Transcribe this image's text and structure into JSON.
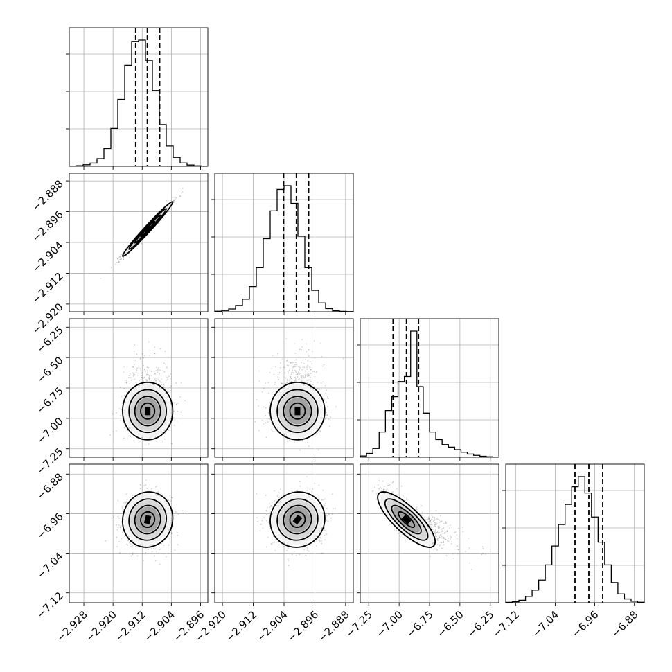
{
  "chart_data": {
    "type": "scatter",
    "subtype": "corner-plot",
    "title": "",
    "grid": true,
    "parameters": [
      {
        "index": 0,
        "label": "",
        "mean": -2.9105,
        "std": 0.0032,
        "skew": 0,
        "axis_range": [
          -2.932,
          -2.894
        ],
        "ticks": [
          -2.928,
          -2.92,
          -2.912,
          -2.904,
          -2.896
        ],
        "tick_labels": [
          "−2.928",
          "−2.920",
          "−2.912",
          "−2.904",
          "−2.896"
        ],
        "quantiles": [
          -2.9138,
          -2.9106,
          -2.9072
        ],
        "histogram": [
          0.002,
          0.005,
          0.012,
          0.025,
          0.06,
          0.14,
          0.3,
          0.53,
          0.8,
          0.99,
          1.0,
          0.84,
          0.6,
          0.33,
          0.16,
          0.07,
          0.026,
          0.01,
          0.004,
          0.001
        ]
      },
      {
        "index": 1,
        "label": "",
        "mean": -2.9005,
        "std": 0.0033,
        "skew": 0,
        "axis_range": [
          -2.922,
          -2.886
        ],
        "ticks": [
          -2.92,
          -2.912,
          -2.904,
          -2.896,
          -2.888
        ],
        "tick_labels": [
          "−2.920",
          "−2.912",
          "−2.904",
          "−2.896",
          "−2.888"
        ],
        "quantiles": [
          -2.9041,
          -2.9008,
          -2.8976
        ],
        "histogram": [
          0.004,
          0.01,
          0.022,
          0.05,
          0.1,
          0.2,
          0.35,
          0.58,
          0.8,
          0.97,
          1.0,
          0.86,
          0.6,
          0.35,
          0.17,
          0.07,
          0.025,
          0.008,
          0.003,
          0.001
        ]
      },
      {
        "index": 2,
        "label": "",
        "mean": -6.94,
        "std": 0.11,
        "skew": 0.5,
        "axis_range": [
          -7.32,
          -6.18
        ],
        "ticks": [
          -7.25,
          -7.0,
          -6.75,
          -6.5,
          -6.25
        ],
        "tick_labels": [
          "−7.25",
          "−7.00",
          "−6.75",
          "−6.50",
          "−6.25"
        ],
        "quantiles": [
          -7.05,
          -6.94,
          -6.84
        ],
        "histogram": [
          0.01,
          0.03,
          0.07,
          0.2,
          0.37,
          0.48,
          0.6,
          0.64,
          1.0,
          0.56,
          0.35,
          0.2,
          0.14,
          0.1,
          0.08,
          0.06,
          0.04,
          0.025,
          0.015,
          0.008,
          0.004,
          0.002
        ]
      },
      {
        "index": 3,
        "label": "",
        "mean": -6.972,
        "std": 0.026,
        "skew": 0,
        "axis_range": [
          -7.14,
          -6.86
        ],
        "ticks": [
          -7.12,
          -7.04,
          -6.96,
          -6.88
        ],
        "tick_labels": [
          "−7.12",
          "−7.04",
          "−6.96",
          "−6.88"
        ],
        "quantiles": [
          -7.0,
          -6.972,
          -6.944
        ],
        "histogram": [
          0.003,
          0.008,
          0.02,
          0.05,
          0.1,
          0.18,
          0.3,
          0.45,
          0.62,
          0.78,
          0.92,
          1.0,
          0.87,
          0.68,
          0.48,
          0.3,
          0.16,
          0.07,
          0.03,
          0.012,
          0.004
        ]
      }
    ],
    "correlations": [
      {
        "i": 1,
        "j": 0,
        "rho": 0.985
      },
      {
        "i": 2,
        "j": 0,
        "rho": 0.0
      },
      {
        "i": 2,
        "j": 1,
        "rho": 0.0
      },
      {
        "i": 3,
        "j": 0,
        "rho": 0.05
      },
      {
        "i": 3,
        "j": 1,
        "rho": 0.05
      },
      {
        "i": 3,
        "j": 2,
        "rho": -0.8
      }
    ],
    "contour_levels": [
      "0.5-sigma",
      "1-sigma",
      "1.5-sigma",
      "2-sigma"
    ]
  }
}
